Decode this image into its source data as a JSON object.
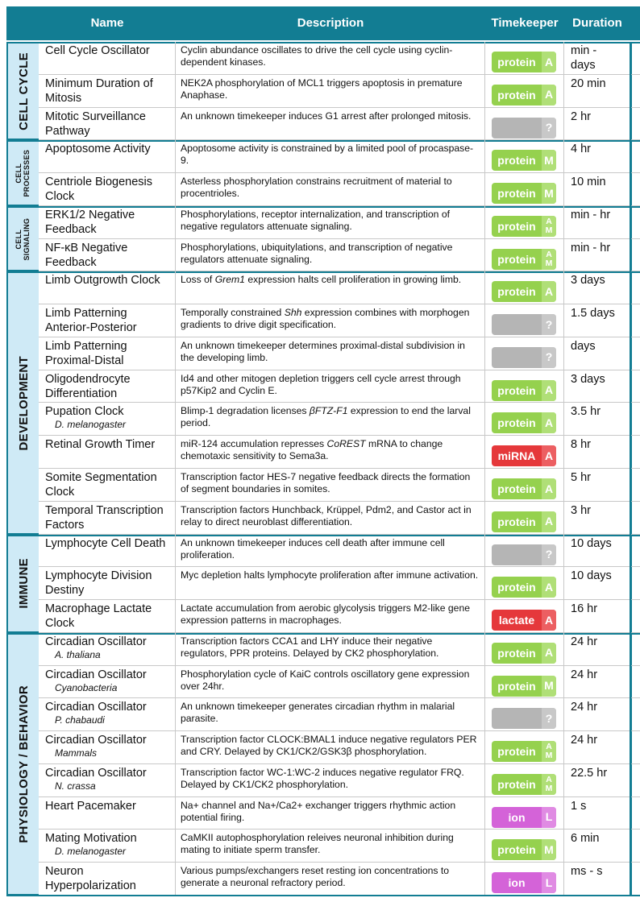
{
  "header": {
    "columns": [
      "Name",
      "Description",
      "Timekeeper",
      "Duration"
    ]
  },
  "groups": [
    {
      "label": "CELL CYCLE",
      "rows": [
        {
          "name": "Cell Cycle Oscillator",
          "description": [
            "Cyclin abundance oscillates to drive the cell cycle using cyclin-dependent kinases."
          ],
          "timekeeper": {
            "type": "protein",
            "mode": "A"
          },
          "duration": "min - days"
        },
        {
          "name": "Minimum Duration of Mitosis",
          "description": [
            "NEK2A phosphorylation of MCL1 triggers apoptosis in premature Anaphase."
          ],
          "timekeeper": {
            "type": "protein",
            "mode": "A"
          },
          "duration": "20 min"
        },
        {
          "name": "Mitotic Surveillance Pathway",
          "description": [
            "An unknown timekeeper induces G1 arrest after prolonged mitosis."
          ],
          "timekeeper": {
            "mode": "?"
          },
          "duration": "2 hr"
        }
      ]
    },
    {
      "label": "CELL PROCESSES",
      "rows": [
        {
          "name": "Apoptosome Activity",
          "description": [
            "Apoptosome activity is constrained by a limited pool of procaspase-9."
          ],
          "timekeeper": {
            "type": "protein",
            "mode": "M"
          },
          "duration": "4 hr"
        },
        {
          "name": "Centriole Biogenesis Clock",
          "description": [
            "Asterless phosphorylation constrains recruitment of material to procentrioles."
          ],
          "timekeeper": {
            "type": "protein",
            "mode": "M"
          },
          "duration": "10 min"
        }
      ]
    },
    {
      "label": "CELL SIGNALING",
      "rows": [
        {
          "name": "ERK1/2 Negative Feedback",
          "description": [
            "Phosphorylations, receptor internalization, and transcription of negative regulators attenuate signaling."
          ],
          "timekeeper": {
            "type": "protein",
            "mode": [
              "A",
              "M"
            ]
          },
          "duration": "min - hr"
        },
        {
          "name": "NF-κB Negative Feedback",
          "description": [
            "Phosphorylations, ubiquitylations, and transcription of negative regulators attenuate signaling."
          ],
          "timekeeper": {
            "type": "protein",
            "mode": [
              "A",
              "M"
            ]
          },
          "duration": "min - hr"
        }
      ]
    },
    {
      "label": "DEVELOPMENT",
      "rows": [
        {
          "name": "Limb Outgrowth Clock",
          "description": [
            "Loss of ",
            {
              "text": "Grem1",
              "italic": true
            },
            " expression halts cell proliferation in growing limb."
          ],
          "timekeeper": {
            "type": "protein",
            "mode": "A"
          },
          "duration": "3 days"
        },
        {
          "name": "Limb Patterning Anterior-Posterior",
          "description": [
            "Temporally constrained ",
            {
              "text": "Shh",
              "italic": true
            },
            " expression combines with morphogen gradients to drive digit specification."
          ],
          "timekeeper": {
            "mode": "?"
          },
          "duration": "1.5 days"
        },
        {
          "name": "Limb Patterning Proximal-Distal",
          "description": [
            "An unknown timekeeper determines proximal-distal subdivision in the developing limb."
          ],
          "timekeeper": {
            "mode": "?"
          },
          "duration": "days"
        },
        {
          "name": "Oligodendrocyte Differentiation",
          "description": [
            "Id4 and other mitogen depletion triggers cell cycle arrest through p57Kip2 and Cyclin E."
          ],
          "timekeeper": {
            "type": "protein",
            "mode": "A"
          },
          "duration": "3 days"
        },
        {
          "name": "Pupation Clock",
          "sub": "D. melanogaster",
          "description": [
            "Blimp-1 degradation licenses ",
            {
              "text": "βFTZ-F1",
              "italic": true
            },
            " expression to end the larval period."
          ],
          "timekeeper": {
            "type": "protein",
            "mode": "A"
          },
          "duration": "3.5 hr"
        },
        {
          "name": "Retinal Growth Timer",
          "description": [
            "miR-124 accumulation represses ",
            {
              "text": "CoREST",
              "italic": true
            },
            " mRNA to change chemotaxic sensitivity to Sema3a."
          ],
          "timekeeper": {
            "type": "miRNA",
            "mode": "A"
          },
          "duration": "8 hr"
        },
        {
          "name": "Somite Segmentation Clock",
          "description": [
            "Transcription factor HES-7 negative feedback directs the formation of segment boundaries in somites."
          ],
          "timekeeper": {
            "type": "protein",
            "mode": "A"
          },
          "duration": "5 hr"
        },
        {
          "name": "Temporal Transcription Factors",
          "description": [
            "Transcription factors Hunchback, Krüppel, Pdm2, and Castor act in relay to direct neuroblast differentiation."
          ],
          "timekeeper": {
            "type": "protein",
            "mode": "A"
          },
          "duration": "3 hr"
        }
      ]
    },
    {
      "label": "IMMUNE",
      "rows": [
        {
          "name": "Lymphocyte Cell Death",
          "description": [
            "An unknown timekeeper induces cell death after immune cell proliferation."
          ],
          "timekeeper": {
            "mode": "?"
          },
          "duration": "10 days"
        },
        {
          "name": "Lymphocyte Division Destiny",
          "description": [
            "Myc depletion halts lymphocyte proliferation after immune activation."
          ],
          "timekeeper": {
            "type": "protein",
            "mode": "A"
          },
          "duration": "10 days"
        },
        {
          "name": "Macrophage Lactate Clock",
          "description": [
            "Lactate accumulation from aerobic glycolysis triggers M2-like gene expression patterns in macrophages."
          ],
          "timekeeper": {
            "type": "lactate",
            "mode": "A"
          },
          "duration": "16 hr"
        }
      ]
    },
    {
      "label": "PHYSIOLOGY / BEHAVIOR",
      "rows": [
        {
          "name": "Circadian Oscillator",
          "sub": "A. thaliana",
          "description": [
            "Transcription factors CCA1 and LHY induce their negative regulators, PPR proteins. Delayed by CK2 phosphorylation."
          ],
          "timekeeper": {
            "type": "protein",
            "mode": "A"
          },
          "duration": "24 hr"
        },
        {
          "name": "Circadian Oscillator",
          "sub": "Cyanobacteria",
          "description": [
            "Phosphorylation cycle of KaiC controls oscillatory gene expression over 24hr."
          ],
          "timekeeper": {
            "type": "protein",
            "mode": "M"
          },
          "duration": "24 hr"
        },
        {
          "name": "Circadian Oscillator",
          "sub": "P. chabaudi",
          "description": [
            "An unknown timekeeper generates circadian rhythm in malarial parasite."
          ],
          "timekeeper": {
            "mode": "?"
          },
          "duration": "24 hr"
        },
        {
          "name": "Circadian Oscillator",
          "sub": "Mammals",
          "description": [
            "Transcription factor CLOCK:BMAL1 induce negative regulators PER and CRY. Delayed by CK1/CK2/GSK3β phosphorylation."
          ],
          "timekeeper": {
            "type": "protein",
            "mode": [
              "A",
              "M"
            ]
          },
          "duration": "24 hr"
        },
        {
          "name": "Circadian Oscillator",
          "sub": "N. crassa",
          "description": [
            "Transcription factor WC-1:WC-2 induces negative regulator FRQ. Delayed by CK1/CK2 phosphorylation."
          ],
          "timekeeper": {
            "type": "protein",
            "mode": [
              "A",
              "M"
            ]
          },
          "duration": "22.5 hr"
        },
        {
          "name": "Heart Pacemaker",
          "description": [
            "Na+ channel and Na+/Ca2+ exchanger triggers rhythmic action potential firing."
          ],
          "timekeeper": {
            "type": "ion",
            "mode": "L"
          },
          "duration": "1 s"
        },
        {
          "name": "Mating Motivation",
          "sub": "D. melanogaster",
          "description": [
            "CaMKII autophosphorylation releives neuronal inhibition during mating to initiate sperm transfer."
          ],
          "timekeeper": {
            "type": "protein",
            "mode": "M"
          },
          "duration": "6 min"
        },
        {
          "name": "Neuron Hyperpolarization",
          "description": [
            "Various pumps/exchangers reset resting ion concentrations to generate a neuronal refractory period."
          ],
          "timekeeper": {
            "type": "ion",
            "mode": "L"
          },
          "duration": "ms - s"
        }
      ]
    }
  ]
}
